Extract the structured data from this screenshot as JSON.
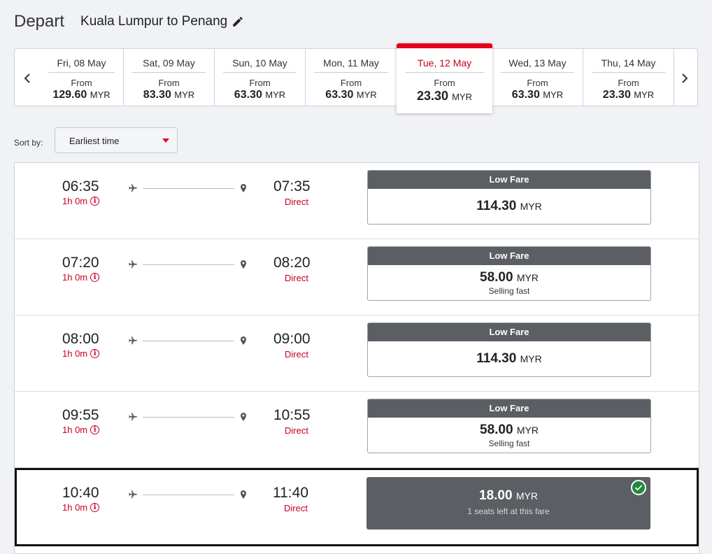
{
  "header": {
    "title": "Depart",
    "route": "Kuala Lumpur to Penang"
  },
  "dates": [
    {
      "label": "Fri, 08 May",
      "from": "From",
      "amount": "129.60",
      "currency": "MYR"
    },
    {
      "label": "Sat, 09 May",
      "from": "From",
      "amount": "83.30",
      "currency": "MYR"
    },
    {
      "label": "Sun, 10 May",
      "from": "From",
      "amount": "63.30",
      "currency": "MYR"
    },
    {
      "label": "Mon, 11 May",
      "from": "From",
      "amount": "63.30",
      "currency": "MYR"
    },
    {
      "label": "Tue, 12 May",
      "from": "From",
      "amount": "23.30",
      "currency": "MYR"
    },
    {
      "label": "Wed, 13 May",
      "from": "From",
      "amount": "63.30",
      "currency": "MYR"
    },
    {
      "label": "Thu, 14 May",
      "from": "From",
      "amount": "23.30",
      "currency": "MYR"
    }
  ],
  "sort": {
    "label": "Sort by:",
    "value": "Earliest time"
  },
  "flights": [
    {
      "depart": "06:35",
      "duration": "1h 0m",
      "arrive": "07:35",
      "stops": "Direct",
      "fare_label": "Low Fare",
      "amount": "114.30",
      "currency": "MYR",
      "note": ""
    },
    {
      "depart": "07:20",
      "duration": "1h 0m",
      "arrive": "08:20",
      "stops": "Direct",
      "fare_label": "Low Fare",
      "amount": "58.00",
      "currency": "MYR",
      "note": "Selling fast"
    },
    {
      "depart": "08:00",
      "duration": "1h 0m",
      "arrive": "09:00",
      "stops": "Direct",
      "fare_label": "Low Fare",
      "amount": "114.30",
      "currency": "MYR",
      "note": ""
    },
    {
      "depart": "09:55",
      "duration": "1h 0m",
      "arrive": "10:55",
      "stops": "Direct",
      "fare_label": "Low Fare",
      "amount": "58.00",
      "currency": "MYR",
      "note": "Selling fast"
    },
    {
      "depart": "10:40",
      "duration": "1h 0m",
      "arrive": "11:40",
      "stops": "Direct",
      "fare_label": "",
      "amount": "18.00",
      "currency": "MYR",
      "note": "1 seats left at this fare"
    }
  ],
  "colors": {
    "accent": "#e4001b",
    "fare_header": "#5b5e63",
    "check": "#1f8a3a"
  },
  "icons": {
    "edit": "pencil-icon",
    "prev": "chevron-left-icon",
    "next": "chevron-right-icon",
    "info": "info-icon",
    "plane": "plane-icon",
    "destination": "location-pin-icon",
    "selected": "check-icon"
  }
}
